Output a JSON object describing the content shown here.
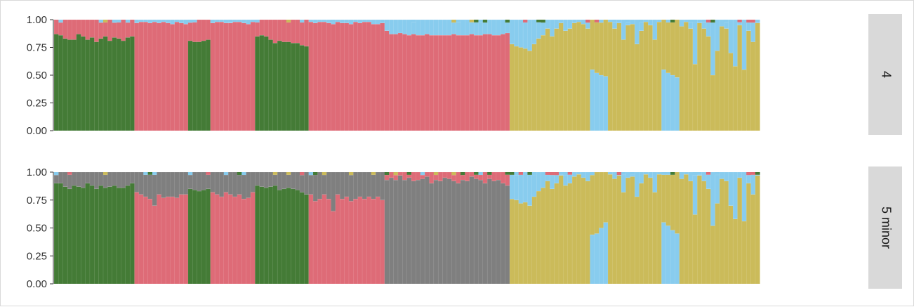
{
  "colors": {
    "green": "#447B36",
    "red": "#DE6B77",
    "blue": "#88CCEE",
    "gold": "#CBBB5A",
    "gray": "#7F7F7F",
    "strip_bg": "#D9D9D9",
    "axis": "#333333"
  },
  "chart_data": [
    {
      "type": "bar",
      "stacked": true,
      "panel_label": "4",
      "ylim": [
        0,
        1
      ],
      "yticks": [
        "1.00",
        "0.75",
        "0.50",
        "0.25",
        "0.00"
      ],
      "xlabel": "",
      "ylabel": "",
      "grid": false,
      "n_bars": 182,
      "segments_order": [
        "green",
        "red",
        "blue",
        "gold"
      ],
      "groups": [
        {
          "count": 18,
          "main": "green",
          "values": [
            0.87,
            0.86,
            0.83,
            0.82,
            0.82,
            0.87,
            0.85,
            0.82,
            0.84,
            0.8,
            0.83,
            0.85,
            0.81,
            0.84,
            0.83,
            0.81,
            0.84,
            0.85
          ],
          "second": "red"
        },
        {
          "count": 12,
          "main": "red",
          "values": [
            0.97,
            0.98,
            0.98,
            0.97,
            0.98,
            0.97,
            0.98,
            0.97,
            0.96,
            0.98,
            0.97,
            0.96
          ],
          "second": "blue"
        },
        {
          "count": 5,
          "main": "green",
          "values": [
            0.81,
            0.8,
            0.8,
            0.81,
            0.82
          ],
          "second": "red"
        },
        {
          "count": 10,
          "main": "red",
          "values": [
            0.97,
            0.98,
            0.98,
            0.97,
            0.97,
            0.98,
            0.98,
            0.97,
            0.96,
            0.98
          ],
          "second": "blue"
        },
        {
          "count": 12,
          "main": "green",
          "values": [
            0.85,
            0.86,
            0.85,
            0.82,
            0.79,
            0.81,
            0.8,
            0.8,
            0.79,
            0.79,
            0.77,
            0.76
          ],
          "second": "red"
        },
        {
          "count": 17,
          "main": "red",
          "values": [
            0.98,
            0.97,
            0.98,
            0.98,
            0.97,
            0.96,
            0.98,
            0.97,
            0.97,
            0.96,
            0.98,
            0.97,
            0.98,
            0.98,
            0.96,
            0.96,
            0.97
          ],
          "second": "blue"
        },
        {
          "count": 28,
          "main": "red",
          "values": [
            0.9,
            0.87,
            0.87,
            0.88,
            0.87,
            0.86,
            0.87,
            0.86,
            0.86,
            0.87,
            0.86,
            0.86,
            0.86,
            0.86,
            0.86,
            0.87,
            0.86,
            0.86,
            0.86,
            0.87,
            0.86,
            0.86,
            0.87,
            0.87,
            0.86,
            0.86,
            0.87,
            0.88
          ],
          "second": "blue"
        },
        {
          "count": 18,
          "main": "gold",
          "values": [
            0.78,
            0.76,
            0.75,
            0.74,
            0.72,
            0.78,
            0.83,
            0.86,
            0.92,
            0.85,
            0.92,
            0.97,
            0.9,
            0.92,
            0.97,
            0.98,
            0.96,
            0.92
          ],
          "second": "blue"
        },
        {
          "count": 4,
          "main": "blue",
          "values": [
            0.55,
            0.52,
            0.5,
            0.49
          ],
          "second": "gold"
        },
        {
          "count": 12,
          "main": "gold",
          "values": [
            0.98,
            0.92,
            0.97,
            0.82,
            0.95,
            0.96,
            0.78,
            0.9,
            0.98,
            0.95,
            0.82,
            0.98
          ],
          "second": "blue"
        },
        {
          "count": 4,
          "main": "blue",
          "values": [
            0.55,
            0.52,
            0.5,
            0.48
          ],
          "second": "gold"
        },
        {
          "count": 18,
          "main": "gold",
          "values": [
            0.94,
            0.98,
            0.92,
            0.6,
            0.97,
            0.92,
            0.85,
            0.5,
            0.72,
            0.94,
            0.92,
            0.7,
            0.58,
            0.95,
            0.55,
            0.9,
            0.8,
            0.97
          ],
          "second": "blue"
        }
      ]
    },
    {
      "type": "bar",
      "stacked": true,
      "panel_label": "5 minor",
      "ylim": [
        0,
        1
      ],
      "yticks": [
        "1.00",
        "0.75",
        "0.50",
        "0.25",
        "0.00"
      ],
      "xlabel": "",
      "ylabel": "",
      "grid": false,
      "n_bars": 182,
      "segments_order": [
        "green",
        "red",
        "gray",
        "blue",
        "gold"
      ],
      "groups": [
        {
          "count": 18,
          "main": "green",
          "values": [
            0.9,
            0.9,
            0.87,
            0.85,
            0.88,
            0.87,
            0.86,
            0.9,
            0.88,
            0.85,
            0.88,
            0.86,
            0.87,
            0.88,
            0.86,
            0.86,
            0.88,
            0.9
          ],
          "second": "gray"
        },
        {
          "count": 12,
          "main": "red",
          "values": [
            0.82,
            0.8,
            0.78,
            0.76,
            0.7,
            0.8,
            0.77,
            0.78,
            0.78,
            0.77,
            0.8,
            0.8
          ],
          "second": "gray"
        },
        {
          "count": 5,
          "main": "green",
          "values": [
            0.85,
            0.84,
            0.83,
            0.84,
            0.85
          ],
          "second": "gray"
        },
        {
          "count": 10,
          "main": "red",
          "values": [
            0.82,
            0.8,
            0.78,
            0.82,
            0.8,
            0.78,
            0.8,
            0.76,
            0.77,
            0.82
          ],
          "second": "gray"
        },
        {
          "count": 12,
          "main": "green",
          "values": [
            0.88,
            0.87,
            0.86,
            0.87,
            0.88,
            0.84,
            0.85,
            0.86,
            0.85,
            0.84,
            0.82,
            0.8
          ],
          "second": "gray"
        },
        {
          "count": 17,
          "main": "red",
          "values": [
            0.8,
            0.74,
            0.76,
            0.8,
            0.76,
            0.65,
            0.8,
            0.76,
            0.78,
            0.74,
            0.76,
            0.78,
            0.76,
            0.78,
            0.76,
            0.78,
            0.75
          ],
          "second": "gray"
        },
        {
          "count": 28,
          "main": "gray",
          "values": [
            0.93,
            0.95,
            0.93,
            0.97,
            0.93,
            0.95,
            0.92,
            0.93,
            0.94,
            0.96,
            0.9,
            0.93,
            0.92,
            0.95,
            0.94,
            0.92,
            0.9,
            0.93,
            0.92,
            0.96,
            0.94,
            0.93,
            0.9,
            0.94,
            0.92,
            0.93,
            0.9,
            0.88
          ],
          "second": "red"
        },
        {
          "count": 18,
          "main": "gold",
          "values": [
            0.76,
            0.75,
            0.72,
            0.73,
            0.7,
            0.78,
            0.83,
            0.86,
            0.92,
            0.85,
            0.9,
            0.97,
            0.88,
            0.9,
            0.96,
            0.98,
            0.95,
            0.92
          ],
          "second": "blue"
        },
        {
          "count": 4,
          "main": "blue",
          "values": [
            0.44,
            0.45,
            0.5,
            0.55
          ],
          "second": "gold"
        },
        {
          "count": 12,
          "main": "gold",
          "values": [
            0.98,
            0.94,
            0.97,
            0.82,
            0.95,
            0.96,
            0.78,
            0.9,
            0.98,
            0.95,
            0.82,
            0.98
          ],
          "second": "blue"
        },
        {
          "count": 4,
          "main": "blue",
          "values": [
            0.55,
            0.52,
            0.48,
            0.45
          ],
          "second": "gold"
        },
        {
          "count": 18,
          "main": "gold",
          "values": [
            0.94,
            0.98,
            0.92,
            0.62,
            0.97,
            0.92,
            0.85,
            0.52,
            0.72,
            0.94,
            0.92,
            0.7,
            0.58,
            0.95,
            0.56,
            0.9,
            0.8,
            0.97
          ],
          "second": "blue"
        }
      ]
    }
  ]
}
